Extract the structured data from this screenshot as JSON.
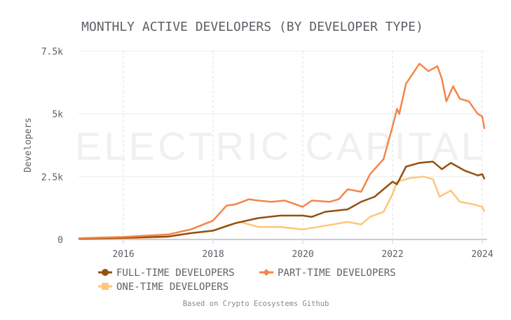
{
  "chart_data": {
    "type": "line",
    "title": "MONTHLY ACTIVE DEVELOPERS (BY DEVELOPER TYPE)",
    "ylabel": "Developers",
    "xlabel": "",
    "xlim": [
      2015.0,
      2024.1
    ],
    "ylim": [
      0,
      7500
    ],
    "x_ticks": [
      2016,
      2018,
      2020,
      2022,
      2024
    ],
    "x_tick_labels": [
      "2016",
      "2018",
      "2020",
      "2022",
      "2024"
    ],
    "y_ticks": [
      0,
      2500,
      5000,
      7500
    ],
    "y_tick_labels": [
      "0",
      "2.5k",
      "5k",
      "7.5k"
    ],
    "grid": true,
    "legend_position": "bottom",
    "watermark": "ELECTRIC CAPITAL",
    "source": "Based on Crypto Ecosystems Github",
    "series": [
      {
        "name": "FULL-TIME DEVELOPERS",
        "color": "#94500f",
        "marker": "circle",
        "x": [
          2015,
          2016,
          2017,
          2017.5,
          2018,
          2018.5,
          2019,
          2019.5,
          2020,
          2020.2,
          2020.5,
          2021,
          2021.3,
          2021.6,
          2022,
          2022.1,
          2022.3,
          2022.6,
          2022.9,
          2023.1,
          2023.3,
          2023.6,
          2023.9,
          2024.0,
          2024.05
        ],
        "y": [
          30,
          60,
          120,
          250,
          350,
          650,
          850,
          950,
          950,
          900,
          1100,
          1200,
          1500,
          1700,
          2300,
          2200,
          2900,
          3050,
          3100,
          2800,
          3050,
          2750,
          2550,
          2600,
          2400
        ]
      },
      {
        "name": "PART-TIME DEVELOPERS",
        "color": "#f4854a",
        "marker": "diamond",
        "x": [
          2015,
          2016,
          2017,
          2017.5,
          2018,
          2018.3,
          2018.5,
          2018.8,
          2019,
          2019.3,
          2019.6,
          2020,
          2020.2,
          2020.6,
          2020.8,
          2021,
          2021.3,
          2021.5,
          2021.8,
          2022,
          2022.1,
          2022.15,
          2022.3,
          2022.6,
          2022.8,
          2023.0,
          2023.1,
          2023.2,
          2023.35,
          2023.5,
          2023.7,
          2023.9,
          2024.0,
          2024.05
        ],
        "y": [
          50,
          100,
          200,
          400,
          750,
          1350,
          1400,
          1600,
          1550,
          1500,
          1550,
          1300,
          1550,
          1500,
          1600,
          2000,
          1900,
          2600,
          3200,
          4500,
          5200,
          5000,
          6200,
          7000,
          6700,
          6900,
          6400,
          5500,
          6100,
          5600,
          5500,
          5000,
          4900,
          4400
        ]
      },
      {
        "name": "ONE-TIME DEVELOPERS",
        "color": "#ffc67a",
        "marker": "square",
        "x": [
          2015,
          2016,
          2017,
          2017.5,
          2018,
          2018.3,
          2018.6,
          2019,
          2019.5,
          2020,
          2020.5,
          2021,
          2021.3,
          2021.5,
          2021.8,
          2022,
          2022.1,
          2022.4,
          2022.7,
          2022.9,
          2023.05,
          2023.3,
          2023.5,
          2023.8,
          2024.0,
          2024.05
        ],
        "y": [
          20,
          40,
          100,
          250,
          350,
          550,
          700,
          500,
          500,
          400,
          550,
          700,
          600,
          900,
          1100,
          1800,
          2300,
          2450,
          2500,
          2400,
          1700,
          1950,
          1500,
          1400,
          1300,
          1100
        ]
      }
    ]
  }
}
